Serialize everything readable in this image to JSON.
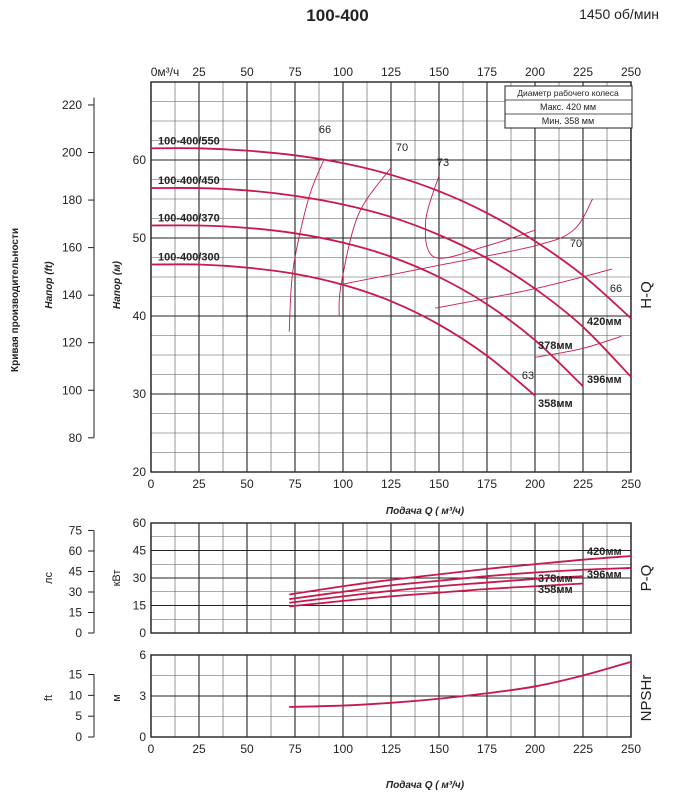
{
  "title": "100-400",
  "speed": "1450 об/мин",
  "side_title": "Кривая производительности",
  "hq": {
    "label": "H-Q",
    "ylabel_ft": "Напор (ft)",
    "ylabel_m": "Напор (м)",
    "xlabel": "Подача Q ( м³/ч)",
    "top_axis_unit": "0м³/ч",
    "x_ticks": [
      0,
      25,
      50,
      75,
      100,
      125,
      150,
      175,
      200,
      225,
      250
    ],
    "top_x_ticks": [
      25,
      50,
      75,
      100,
      125,
      150,
      175,
      200,
      225,
      250
    ],
    "m_ticks": [
      20,
      30,
      40,
      50,
      60
    ],
    "ft_ticks": [
      80,
      100,
      120,
      140,
      160,
      180,
      200,
      220
    ],
    "legend_title": "Диаметр рабочего колеса",
    "legend_max": "Макс. 420  мм",
    "legend_min": "Мин.  358  мм"
  },
  "pq": {
    "label": "P-Q",
    "unit_hp": "лс",
    "unit_kw": "кВт",
    "kw_ticks": [
      0,
      15,
      30,
      45,
      60
    ],
    "hp_ticks": [
      0,
      15,
      30,
      45,
      60,
      75
    ],
    "hp_extra": 75
  },
  "npsh": {
    "label": "NPSHr",
    "unit_ft": "ft",
    "unit_m": "м",
    "m_ticks": [
      0,
      3,
      6
    ],
    "ft_ticks": [
      0,
      5,
      10,
      15
    ],
    "xlabel": "Подача Q ( м³/ч)"
  },
  "chart_data": [
    {
      "type": "line",
      "title": "H-Q",
      "xlabel": "Подача Q ( м³/ч)",
      "ylabel": "Напор (м)",
      "xlim": [
        0,
        250
      ],
      "ylim": [
        20,
        70
      ],
      "series": [
        {
          "name": "100-400/550",
          "end_label": "420мм",
          "x": [
            0,
            25,
            50,
            75,
            100,
            125,
            150,
            175,
            200,
            225,
            250
          ],
          "y": [
            61.5,
            61.5,
            61.2,
            60.6,
            59.6,
            58.1,
            56.0,
            53.2,
            49.6,
            45.2,
            39.7
          ]
        },
        {
          "name": "100-400/450",
          "end_label": "396мм",
          "x": [
            0,
            25,
            50,
            75,
            100,
            125,
            150,
            175,
            200,
            225,
            250
          ],
          "y": [
            56.4,
            56.4,
            56.1,
            55.4,
            54.3,
            52.7,
            50.4,
            47.4,
            43.5,
            38.6,
            32.2
          ]
        },
        {
          "name": "100-400/370",
          "end_label": "378мм",
          "x": [
            0,
            25,
            50,
            75,
            100,
            125,
            150,
            175,
            200,
            225
          ],
          "y": [
            51.6,
            51.6,
            51.3,
            50.6,
            49.4,
            47.6,
            45.0,
            41.5,
            36.9,
            31.0
          ]
        },
        {
          "name": "100-400/300",
          "end_label": "358мм",
          "x": [
            0,
            25,
            50,
            75,
            100,
            125,
            150,
            175,
            200
          ],
          "y": [
            46.6,
            46.6,
            46.2,
            45.4,
            44.0,
            41.9,
            38.9,
            34.9,
            29.8
          ]
        }
      ],
      "efficiency_labels": [
        "66",
        "70",
        "73",
        "70",
        "66",
        "63"
      ]
    },
    {
      "type": "line",
      "title": "P-Q",
      "ylabel": "кВт",
      "xlim": [
        0,
        250
      ],
      "ylim": [
        0,
        60
      ],
      "series": [
        {
          "name": "420мм",
          "x": [
            72,
            100,
            125,
            150,
            175,
            200,
            225,
            250
          ],
          "y": [
            21.0,
            25.5,
            29.0,
            32.0,
            35.0,
            37.5,
            40.0,
            42.0
          ]
        },
        {
          "name": "396мм",
          "x": [
            72,
            100,
            125,
            150,
            175,
            200,
            225,
            250
          ],
          "y": [
            18.5,
            22.5,
            26.0,
            28.5,
            31.0,
            33.0,
            34.5,
            35.5
          ]
        },
        {
          "name": "378мм",
          "x": [
            72,
            100,
            125,
            150,
            175,
            200,
            225
          ],
          "y": [
            16.5,
            20.0,
            23.0,
            25.5,
            27.5,
            29.5,
            31.0
          ]
        },
        {
          "name": "358мм",
          "x": [
            72,
            100,
            125,
            150,
            175,
            200,
            225
          ],
          "y": [
            14.5,
            17.5,
            20.0,
            22.0,
            24.0,
            25.5,
            27.0
          ]
        }
      ]
    },
    {
      "type": "line",
      "title": "NPSHr",
      "xlabel": "Подача Q ( м³/ч)",
      "ylabel": "м",
      "xlim": [
        0,
        250
      ],
      "ylim": [
        0,
        6
      ],
      "series": [
        {
          "name": "NPSHr",
          "x": [
            72,
            100,
            125,
            150,
            175,
            200,
            225,
            250
          ],
          "y": [
            2.2,
            2.3,
            2.5,
            2.8,
            3.2,
            3.7,
            4.5,
            5.5
          ]
        }
      ]
    }
  ]
}
